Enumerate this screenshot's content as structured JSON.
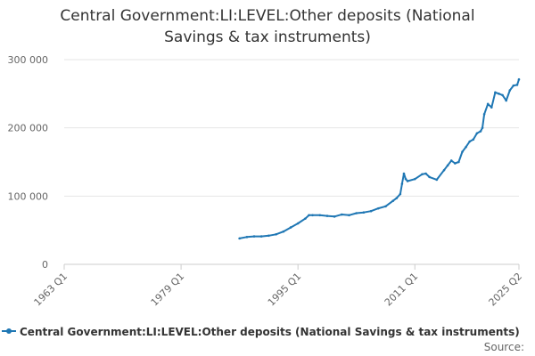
{
  "chart_data": {
    "type": "line",
    "title": "Central Government:LI:LEVEL:Other deposits (National Savings & tax instruments)",
    "title_lines": [
      "Central Government:LI:LEVEL:Other deposits (National",
      "Savings & tax instruments)"
    ],
    "xlabel": "",
    "ylabel": "",
    "x_tick_labels": [
      "1963 Q1",
      "1979 Q1",
      "1995 Q1",
      "2011 Q1",
      "2025 Q2"
    ],
    "x_tick_values": [
      1963.0,
      1979.0,
      1995.0,
      2011.0,
      2025.25
    ],
    "xlim": [
      1963.0,
      2025.25
    ],
    "ylim": [
      0,
      300000
    ],
    "y_ticks": [
      0,
      100000,
      200000,
      300000
    ],
    "y_tick_labels": [
      "0",
      "100 000",
      "200 000",
      "300 000"
    ],
    "grid": "horizontal",
    "legend": "bottom",
    "source_label": "Source:",
    "color": "#1f77b4",
    "series": [
      {
        "name": "Central Government:LI:LEVEL:Other deposits (National Savings & tax instruments)",
        "x": [
          1987.0,
          1988.0,
          1989.0,
          1990.0,
          1991.0,
          1992.0,
          1993.0,
          1994.0,
          1995.0,
          1996.0,
          1996.5,
          1997.0,
          1998.0,
          1999.0,
          2000.0,
          2001.0,
          2002.0,
          2003.0,
          2004.0,
          2005.0,
          2006.0,
          2007.0,
          2008.0,
          2008.5,
          2009.0,
          2009.25,
          2009.5,
          2009.75,
          2010.0,
          2011.0,
          2012.0,
          2012.5,
          2013.0,
          2014.0,
          2015.0,
          2015.5,
          2016.0,
          2016.5,
          2017.0,
          2017.5,
          2018.0,
          2018.5,
          2019.0,
          2019.5,
          2020.0,
          2020.25,
          2020.5,
          2021.0,
          2021.5,
          2022.0,
          2022.5,
          2023.0,
          2023.5,
          2024.0,
          2024.5,
          2025.0,
          2025.25
        ],
        "y": [
          38000,
          40000,
          41000,
          41000,
          42000,
          44000,
          48000,
          54000,
          60000,
          67000,
          72000,
          72000,
          72000,
          71000,
          70000,
          73000,
          72000,
          75000,
          76000,
          78000,
          82000,
          85000,
          93000,
          97000,
          103000,
          118000,
          133000,
          125000,
          122000,
          125000,
          132000,
          133000,
          128000,
          124000,
          138000,
          145000,
          152000,
          148000,
          150000,
          165000,
          172000,
          180000,
          183000,
          192000,
          195000,
          200000,
          220000,
          235000,
          230000,
          252000,
          250000,
          248000,
          240000,
          255000,
          262000,
          263000,
          271000
        ]
      }
    ]
  }
}
